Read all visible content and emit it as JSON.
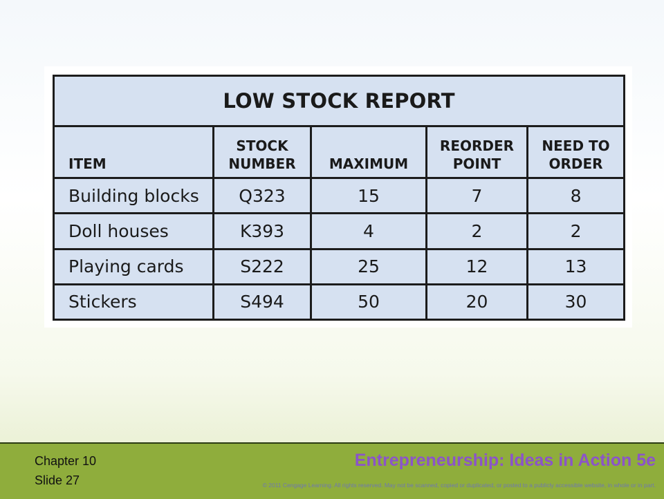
{
  "table": {
    "title": "LOW STOCK REPORT",
    "headers": [
      [
        "ITEM"
      ],
      [
        "STOCK",
        "NUMBER"
      ],
      [
        "MAXIMUM"
      ],
      [
        "REORDER",
        "POINT"
      ],
      [
        "NEED TO",
        "ORDER"
      ]
    ],
    "rows": [
      [
        "Building blocks",
        "Q323",
        "15",
        "7",
        "8"
      ],
      [
        "Doll houses",
        "K393",
        "4",
        "2",
        "2"
      ],
      [
        "Playing cards",
        "S222",
        "25",
        "12",
        "13"
      ],
      [
        "Stickers",
        "S494",
        "50",
        "20",
        "30"
      ]
    ]
  },
  "footer": {
    "chapter": "Chapter 10",
    "slide": "Slide 27",
    "book_title": "Entrepreneurship: Ideas in Action 5e",
    "copyright": "© 2011 Cengage Learning. All rights reserved. May not be scanned, copied or duplicated, or posted to a publicly accessible website, in whole or in part."
  },
  "colors": {
    "table_fill": "#d6e1f1",
    "footer_band": "#8fad3c",
    "title_purple": "#8b54c9"
  }
}
